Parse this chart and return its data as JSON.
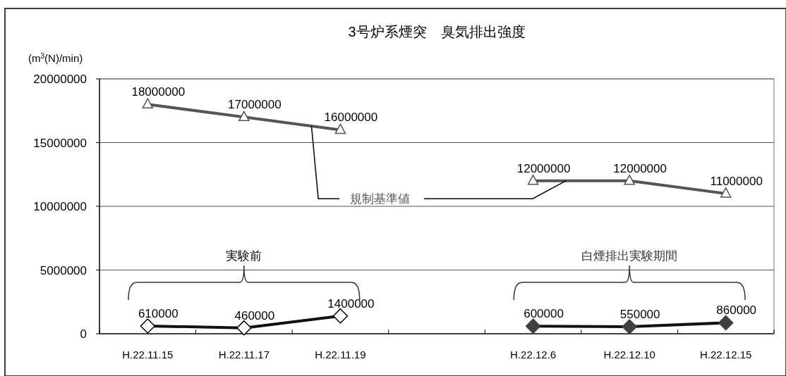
{
  "chart_data": {
    "type": "line",
    "title": "3号炉系煙突　臭気排出強度",
    "ylabel": "(m$^{3}$(N)/min)",
    "categories": [
      "H.22.11.15",
      "H.22.11.17",
      "H.22.11.19",
      null,
      "H.22.12.6",
      "H.22.12.10",
      "H.22.12.15"
    ],
    "series": [
      {
        "name": "規制基準値",
        "color": "#555555",
        "marker": "triangle",
        "colors": [
          "#ffffff",
          "#ffffff",
          "#ffffff",
          null,
          "#ffffff",
          "#ffffff",
          "#ffffff"
        ],
        "values": [
          18000000,
          17000000,
          16000000,
          null,
          12000000,
          12000000,
          11000000
        ]
      },
      {
        "color": "#111111",
        "marker": "diamond",
        "colors": [
          "#ffffff",
          "#ffffff",
          "#ffffff",
          null,
          null,
          null,
          null
        ],
        "values": [
          610000,
          460000,
          1400000,
          null,
          null,
          null,
          null
        ]
      },
      {
        "color": "#111111",
        "marker": "diamond",
        "colors": [
          null,
          null,
          null,
          null,
          "#404040",
          "#404040",
          "#404040"
        ],
        "values": [
          null,
          null,
          null,
          null,
          600000,
          550000,
          860000
        ]
      }
    ],
    "ylim": [
      0,
      20000000
    ],
    "yticks": [
      0,
      5000000,
      10000000,
      15000000,
      20000000
    ],
    "grid": "y",
    "data_labels": true,
    "annotations": [
      "実験前",
      "白煙排出実験期間"
    ]
  }
}
